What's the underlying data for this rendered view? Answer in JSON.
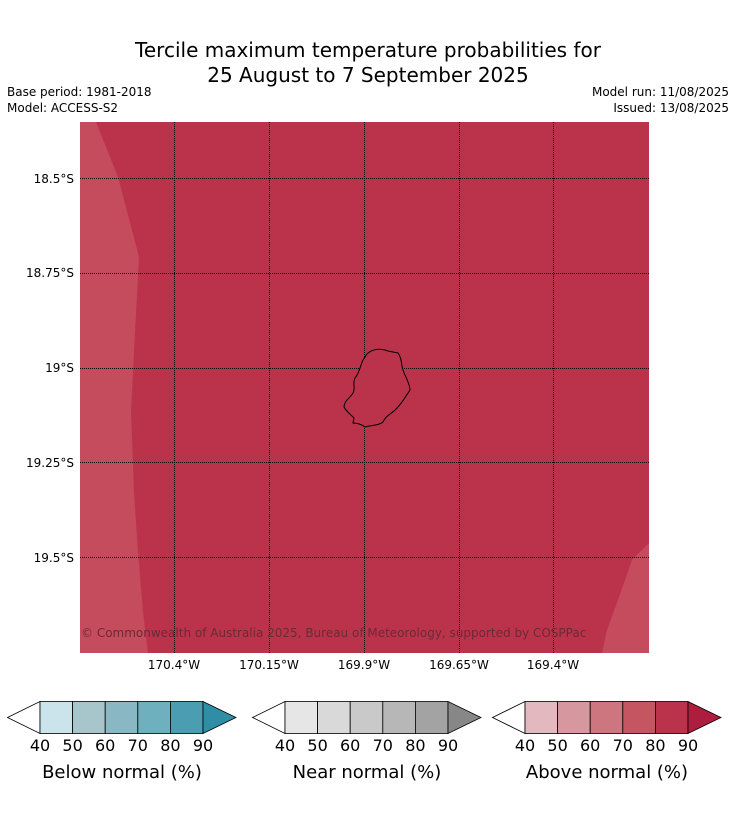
{
  "title": {
    "line1": "Tercile maximum temperature probabilities for",
    "line2": "25 August to 7 September 2025"
  },
  "meta": {
    "base_period": "Base period: 1981-2018",
    "model": "Model: ACCESS-S2",
    "model_run": "Model run: 11/08/2025",
    "issued": "Issued: 13/08/2025"
  },
  "map": {
    "dominant_category": "Above normal",
    "colors": {
      "above_80_90": "#bb334b",
      "above_70_80": "#c44c5d",
      "coast": "#000000",
      "grid": "#000000"
    },
    "lat_labels": [
      "18.5°S",
      "18.75°S",
      "19°S",
      "19.25°S",
      "19.5°S"
    ],
    "lon_labels": [
      "170.4°W",
      "170.15°W",
      "169.9°W",
      "169.65°W",
      "169.4°W"
    ],
    "credit": "© Commonwealth of Australia 2025, Bureau of Meteorology, supported by COSPPac",
    "island": "island-outline"
  },
  "legends": [
    {
      "label": "Below normal (%)",
      "ticks": [
        "40",
        "50",
        "60",
        "70",
        "80",
        "90"
      ],
      "colors": [
        "#ffffff",
        "#cbe3ea",
        "#a6c6cc",
        "#89b7c3",
        "#6fb0bf",
        "#4b9db1",
        "#2f8ea6"
      ]
    },
    {
      "label": "Near normal (%)",
      "ticks": [
        "40",
        "50",
        "60",
        "70",
        "80",
        "90"
      ],
      "colors": [
        "#ffffff",
        "#e6e6e6",
        "#d9d9d9",
        "#c9c9c9",
        "#b7b7b7",
        "#a3a3a3",
        "#878787"
      ]
    },
    {
      "label": "Above normal (%)",
      "ticks": [
        "40",
        "50",
        "60",
        "70",
        "80",
        "90"
      ],
      "colors": [
        "#ffffff",
        "#e3b8be",
        "#d7979f",
        "#cd7680",
        "#c45561",
        "#bb334b",
        "#ad1d3e"
      ]
    }
  ]
}
